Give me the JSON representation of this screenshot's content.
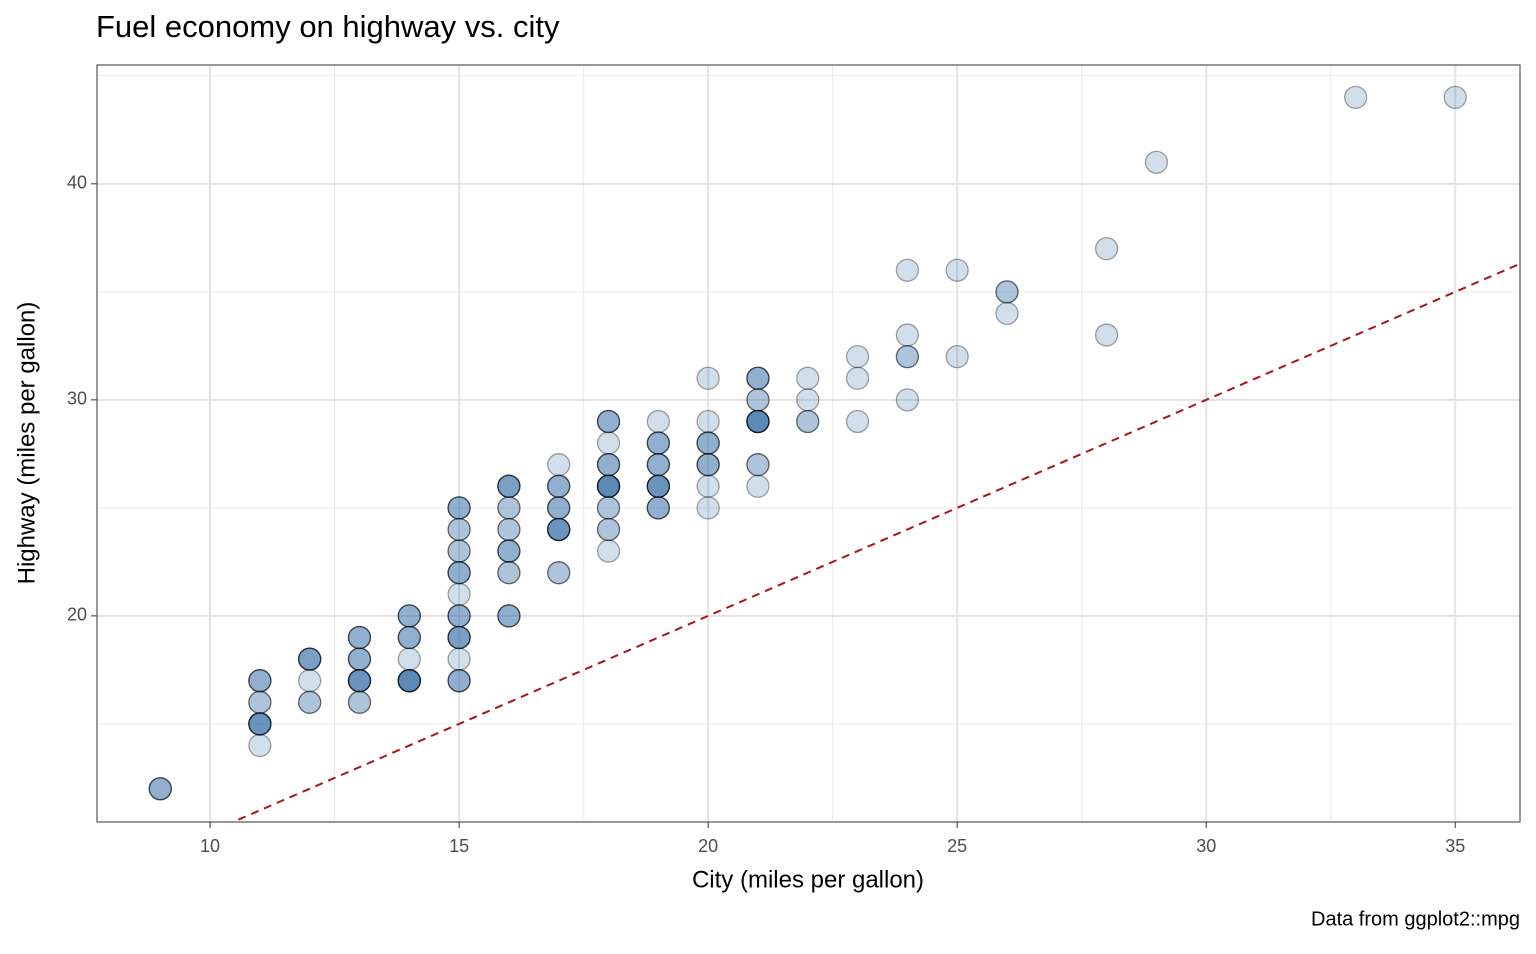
{
  "chart_data": {
    "type": "scatter",
    "title": "Fuel economy on highway vs. city",
    "x_label": "City (miles per gallon)",
    "y_label": "Highway (miles per gallon)",
    "caption": "Data from ggplot2::mpg",
    "x": [
      9,
      9,
      9,
      11,
      11,
      11,
      11,
      11,
      11,
      11,
      11,
      11,
      11,
      11,
      12,
      12,
      12,
      12,
      12,
      12,
      12,
      13,
      13,
      13,
      13,
      13,
      13,
      13,
      13,
      13,
      13,
      13,
      13,
      13,
      14,
      14,
      14,
      14,
      14,
      14,
      14,
      14,
      14,
      14,
      14,
      14,
      14,
      15,
      15,
      15,
      15,
      15,
      15,
      15,
      15,
      15,
      15,
      15,
      15,
      15,
      15,
      15,
      15,
      15,
      15,
      15,
      15,
      15,
      15,
      16,
      16,
      16,
      16,
      16,
      16,
      16,
      16,
      16,
      16,
      16,
      16,
      16,
      16,
      16,
      16,
      17,
      17,
      17,
      17,
      17,
      17,
      17,
      17,
      17,
      17,
      17,
      17,
      17,
      17,
      18,
      18,
      18,
      18,
      18,
      18,
      18,
      18,
      18,
      18,
      18,
      18,
      18,
      18,
      18,
      18,
      18,
      18,
      19,
      19,
      19,
      19,
      19,
      19,
      19,
      19,
      19,
      19,
      19,
      19,
      19,
      19,
      19,
      20,
      20,
      20,
      20,
      20,
      20,
      20,
      20,
      20,
      20,
      21,
      21,
      21,
      21,
      21,
      21,
      21,
      21,
      21,
      21,
      21,
      21,
      21,
      21,
      22,
      22,
      22,
      22,
      23,
      23,
      23,
      24,
      24,
      24,
      24,
      24,
      25,
      25,
      26,
      26,
      26,
      28,
      28,
      29,
      33,
      35
    ],
    "series": [
      {
        "name": "Highway",
        "color": "#2f68a6",
        "stroke": "#000000",
        "opacity": 0.22,
        "values": [
          12,
          12,
          12,
          17,
          17,
          17,
          16,
          16,
          15,
          15,
          15,
          15,
          15,
          14,
          18,
          18,
          18,
          18,
          17,
          16,
          16,
          19,
          19,
          19,
          18,
          18,
          18,
          17,
          17,
          17,
          17,
          17,
          16,
          16,
          20,
          20,
          20,
          19,
          19,
          19,
          18,
          17,
          17,
          17,
          17,
          17,
          17,
          25,
          25,
          25,
          24,
          24,
          23,
          23,
          22,
          22,
          22,
          21,
          20,
          20,
          20,
          19,
          19,
          19,
          19,
          18,
          17,
          17,
          17,
          26,
          26,
          26,
          26,
          25,
          25,
          24,
          24,
          23,
          23,
          23,
          22,
          22,
          20,
          20,
          20,
          27,
          26,
          26,
          26,
          25,
          25,
          25,
          24,
          24,
          24,
          24,
          24,
          22,
          22,
          29,
          29,
          29,
          28,
          27,
          27,
          27,
          26,
          26,
          26,
          26,
          26,
          26,
          25,
          25,
          24,
          24,
          23,
          29,
          28,
          28,
          28,
          27,
          27,
          27,
          26,
          26,
          26,
          26,
          26,
          25,
          25,
          25,
          31,
          29,
          28,
          28,
          28,
          27,
          27,
          27,
          26,
          25,
          31,
          31,
          31,
          30,
          30,
          29,
          29,
          29,
          29,
          29,
          29,
          27,
          27,
          26,
          31,
          30,
          29,
          29,
          32,
          31,
          29,
          36,
          33,
          32,
          32,
          30,
          36,
          32,
          35,
          35,
          34,
          37,
          33,
          41,
          44,
          44
        ]
      }
    ],
    "reference_line": {
      "slope": 1,
      "intercept": 0,
      "color": "#a8151c"
    },
    "xlim": [
      7.73,
      36.3
    ],
    "ylim": [
      10.46,
      45.5
    ],
    "xticks": [
      10,
      15,
      20,
      25,
      30,
      35
    ],
    "yticks": [
      20,
      30,
      40
    ],
    "grid": true
  }
}
